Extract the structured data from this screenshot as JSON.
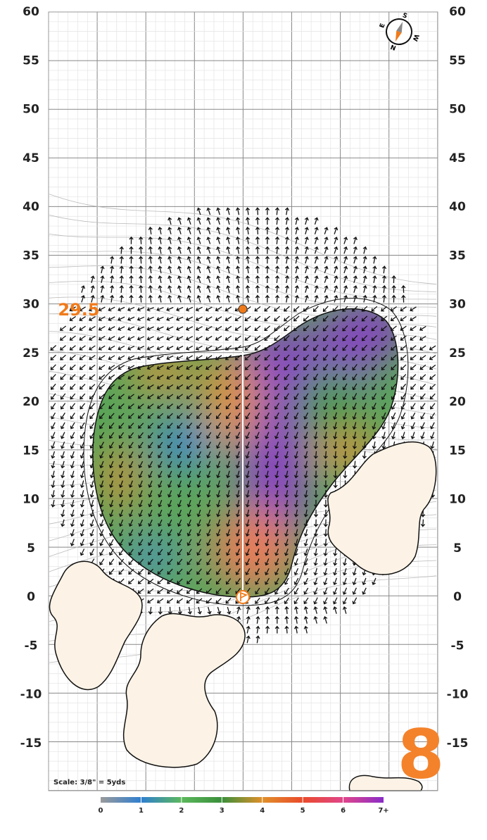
{
  "yard_labels": [
    60,
    55,
    50,
    45,
    40,
    35,
    30,
    25,
    20,
    15,
    10,
    5,
    0,
    -5,
    -10,
    -15
  ],
  "distance_label": "29.5",
  "scale_note": "Scale: 3/8\" = 5yds",
  "hole_number": "8",
  "compass": [
    "S",
    "W",
    "N",
    "E"
  ],
  "legend": {
    "labels": [
      0,
      1,
      2,
      3,
      4,
      5,
      6,
      "7+"
    ],
    "colors": [
      "#9a9a9a",
      "#2f7fd0",
      "#5cb85c",
      "#3a8f3a",
      "#e0902a",
      "#ea4a2a",
      "#e0458a",
      "#8a2cc8"
    ]
  }
}
